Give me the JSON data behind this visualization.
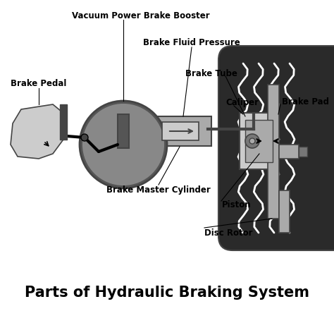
{
  "title": "Parts of Hydraulic Braking System",
  "title_fontsize": 15,
  "title_fontweight": "bold",
  "background_color": "#ffffff",
  "labels": {
    "vacuum_booster": "Vacuum Power Brake Booster",
    "brake_fluid": "Brake Fluid Pressure",
    "brake_tube": "Brake Tube",
    "brake_pedal": "Brake Pedal",
    "master_cylinder": "Brake Master Cylinder",
    "caliper": "Caliper",
    "brake_pad": "Brake Pad",
    "piston": "Piston",
    "disc_rotor": "Disc Rotor"
  },
  "colors": {
    "dark_gray": "#444444",
    "medium_gray": "#777777",
    "light_gray": "#aaaaaa",
    "very_light_gray": "#cccccc",
    "black": "#000000",
    "white": "#ffffff",
    "tire_dark": "#2a2a2a",
    "booster_dark": "#555555",
    "booster_mid": "#888888"
  }
}
